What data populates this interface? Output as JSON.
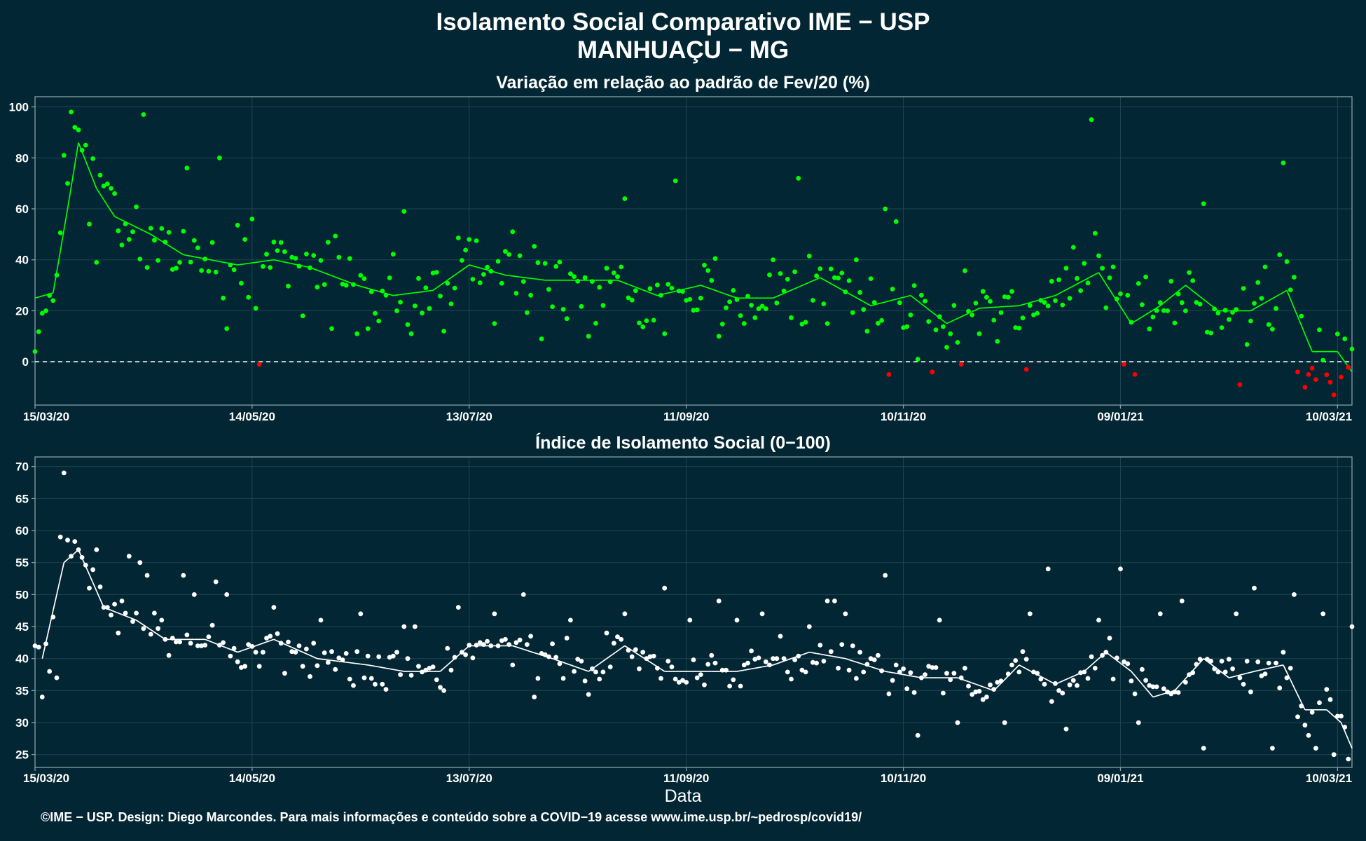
{
  "title_line1": "Isolamento Social Comparativo IME − USP",
  "title_line2": "MANHUAÇU − MG",
  "footer": "©IME − USP. Design: Diego Marcondes. Para mais informações e conteúdo sobre a COVID−19 acesse www.ime.usp.br/~pedrosp/covid19/",
  "xlabel": "Data",
  "colors": {
    "background": "#022633",
    "positive": "#00ff00",
    "negative": "#ff0000",
    "index": "#ffffff",
    "grid": "#1d4652",
    "axis": "#8aa0a8"
  },
  "chart_data": [
    {
      "type": "scatter",
      "subtitle": "Variação em relação ao padrão de Fev/20 (%)",
      "x_range": [
        "15/03/20",
        "10/03/21"
      ],
      "x_ticks": [
        "15/03/20",
        "14/05/20",
        "13/07/20",
        "11/09/20",
        "10/11/20",
        "09/01/21",
        "10/03/21"
      ],
      "ylim": [
        -17,
        104
      ],
      "y_ticks": [
        0,
        20,
        40,
        60,
        80,
        100
      ],
      "reference_line": 0,
      "overlay": "moving average line, green when positive, red when negative",
      "anchor_points_date_value": [
        [
          "15/03/20",
          4
        ],
        [
          "17/03/20",
          19
        ],
        [
          "18/03/20",
          20
        ],
        [
          "19/03/20",
          26
        ],
        [
          "20/03/20",
          24
        ],
        [
          "21/03/20",
          34
        ],
        [
          "23/03/20",
          81
        ],
        [
          "24/03/20",
          70
        ],
        [
          "25/03/20",
          98
        ],
        [
          "26/03/20",
          92
        ],
        [
          "27/03/20",
          91
        ],
        [
          "28/03/20",
          83
        ],
        [
          "29/03/20",
          85
        ],
        [
          "30/03/20",
          54
        ],
        [
          "01/04/20",
          39
        ],
        [
          "03/04/20",
          69
        ],
        [
          "05/04/20",
          68
        ],
        [
          "06/04/20",
          66
        ],
        [
          "10/04/20",
          48
        ],
        [
          "14/04/20",
          97
        ],
        [
          "15/04/20",
          37
        ],
        [
          "20/04/20",
          47
        ],
        [
          "26/04/20",
          76
        ],
        [
          "05/05/20",
          80
        ],
        [
          "06/05/20",
          25
        ],
        [
          "07/05/20",
          13
        ],
        [
          "12/05/20",
          48
        ],
        [
          "14/05/20",
          56
        ],
        [
          "15/05/20",
          21
        ],
        [
          "16/05/20",
          -1
        ],
        [
          "20/05/20",
          47
        ],
        [
          "28/05/20",
          18
        ],
        [
          "05/06/20",
          13
        ],
        [
          "12/06/20",
          11
        ],
        [
          "18/06/20",
          16
        ],
        [
          "25/06/20",
          59
        ],
        [
          "27/06/20",
          11
        ],
        [
          "06/07/20",
          12
        ],
        [
          "13/07/20",
          48
        ],
        [
          "20/07/20",
          15
        ],
        [
          "25/07/20",
          51
        ],
        [
          "02/08/20",
          9
        ],
        [
          "15/08/20",
          10
        ],
        [
          "25/08/20",
          64
        ],
        [
          "05/09/20",
          11
        ],
        [
          "08/09/20",
          71
        ],
        [
          "20/09/20",
          10
        ],
        [
          "27/09/20",
          15
        ],
        [
          "05/10/20",
          40
        ],
        [
          "12/10/20",
          72
        ],
        [
          "20/10/20",
          15
        ],
        [
          "28/10/20",
          40
        ],
        [
          "05/11/20",
          60
        ],
        [
          "06/11/20",
          -5
        ],
        [
          "08/11/20",
          55
        ],
        [
          "14/11/20",
          1
        ],
        [
          "18/11/20",
          -4
        ],
        [
          "26/11/20",
          -1
        ],
        [
          "06/12/20",
          8
        ],
        [
          "14/12/20",
          -3
        ],
        [
          "01/01/21",
          95
        ],
        [
          "10/01/21",
          -1
        ],
        [
          "13/01/21",
          -5
        ],
        [
          "01/02/21",
          62
        ],
        [
          "11/02/21",
          -9
        ],
        [
          "23/02/21",
          78
        ],
        [
          "27/02/21",
          -4
        ],
        [
          "01/03/21",
          -10
        ],
        [
          "04/03/21",
          -7
        ],
        [
          "08/03/21",
          -8
        ],
        [
          "09/03/21",
          -13
        ],
        [
          "11/03/21",
          -6
        ],
        [
          "12/03/21",
          9
        ],
        [
          "14/03/21",
          5
        ]
      ],
      "moving_average_date_value": [
        [
          "15/03/20",
          25
        ],
        [
          "20/03/20",
          27
        ],
        [
          "24/03/20",
          60
        ],
        [
          "27/03/20",
          86
        ],
        [
          "01/04/20",
          68
        ],
        [
          "06/04/20",
          57
        ],
        [
          "16/04/20",
          50
        ],
        [
          "25/04/20",
          42
        ],
        [
          "10/05/20",
          38
        ],
        [
          "20/05/20",
          40
        ],
        [
          "30/05/20",
          37
        ],
        [
          "12/06/20",
          30
        ],
        [
          "22/06/20",
          26
        ],
        [
          "03/07/20",
          28
        ],
        [
          "13/07/20",
          38
        ],
        [
          "23/07/20",
          34
        ],
        [
          "03/08/20",
          32
        ],
        [
          "15/08/20",
          32
        ],
        [
          "23/08/20",
          32
        ],
        [
          "03/09/20",
          26
        ],
        [
          "15/09/20",
          30
        ],
        [
          "25/09/20",
          25
        ],
        [
          "05/10/20",
          25
        ],
        [
          "18/10/20",
          33
        ],
        [
          "01/11/20",
          22
        ],
        [
          "12/11/20",
          26
        ],
        [
          "22/11/20",
          15
        ],
        [
          "01/12/20",
          21
        ],
        [
          "12/12/20",
          22
        ],
        [
          "22/12/20",
          26
        ],
        [
          "03/01/21",
          35
        ],
        [
          "12/01/21",
          15
        ],
        [
          "20/01/21",
          22
        ],
        [
          "27/01/21",
          30
        ],
        [
          "05/02/21",
          20
        ],
        [
          "14/02/21",
          20
        ],
        [
          "24/02/21",
          28
        ],
        [
          "03/03/21",
          4
        ],
        [
          "10/03/21",
          4
        ],
        [
          "14/03/21",
          -4
        ]
      ]
    },
    {
      "type": "scatter",
      "subtitle": "Índice de Isolamento Social (0−100)",
      "x_range": [
        "15/03/20",
        "10/03/21"
      ],
      "x_ticks": [
        "15/03/20",
        "14/05/20",
        "13/07/20",
        "11/09/20",
        "10/11/20",
        "09/01/21",
        "10/03/21"
      ],
      "ylim": [
        23,
        71.5
      ],
      "y_ticks": [
        25,
        30,
        35,
        40,
        45,
        50,
        55,
        60,
        65,
        70
      ],
      "overlay": "moving average line",
      "anchor_points_date_value": [
        [
          "15/03/20",
          42
        ],
        [
          "17/03/20",
          34
        ],
        [
          "19/03/20",
          38
        ],
        [
          "21/03/20",
          37
        ],
        [
          "22/03/20",
          59
        ],
        [
          "23/03/20",
          69
        ],
        [
          "25/03/20",
          56
        ],
        [
          "27/03/20",
          57
        ],
        [
          "30/03/20",
          51
        ],
        [
          "01/04/20",
          57
        ],
        [
          "03/04/20",
          48
        ],
        [
          "10/04/20",
          56
        ],
        [
          "13/04/20",
          55
        ],
        [
          "15/04/20",
          53
        ],
        [
          "20/04/20",
          43
        ],
        [
          "25/04/20",
          53
        ],
        [
          "28/04/20",
          50
        ],
        [
          "04/05/20",
          52
        ],
        [
          "07/05/20",
          50
        ],
        [
          "15/05/20",
          41
        ],
        [
          "20/05/20",
          48
        ],
        [
          "02/06/20",
          46
        ],
        [
          "13/06/20",
          47
        ],
        [
          "17/06/20",
          36
        ],
        [
          "25/06/20",
          45
        ],
        [
          "28/06/20",
          45
        ],
        [
          "06/07/20",
          35
        ],
        [
          "10/07/20",
          48
        ],
        [
          "20/07/20",
          47
        ],
        [
          "28/07/20",
          50
        ],
        [
          "31/07/20",
          34
        ],
        [
          "10/08/20",
          46
        ],
        [
          "20/08/20",
          44
        ],
        [
          "25/08/20",
          47
        ],
        [
          "31/08/20",
          40
        ],
        [
          "05/09/20",
          51
        ],
        [
          "12/09/20",
          46
        ],
        [
          "20/09/20",
          49
        ],
        [
          "25/09/20",
          46
        ],
        [
          "02/10/20",
          47
        ],
        [
          "15/10/20",
          45
        ],
        [
          "20/10/20",
          49
        ],
        [
          "22/10/20",
          49
        ],
        [
          "25/10/20",
          47
        ],
        [
          "05/11/20",
          53
        ],
        [
          "14/11/20",
          28
        ],
        [
          "20/11/20",
          46
        ],
        [
          "25/11/20",
          30
        ],
        [
          "08/12/20",
          30
        ],
        [
          "15/12/20",
          47
        ],
        [
          "20/12/20",
          54
        ],
        [
          "25/12/20",
          29
        ],
        [
          "03/01/21",
          46
        ],
        [
          "09/01/21",
          54
        ],
        [
          "14/01/21",
          30
        ],
        [
          "20/01/21",
          47
        ],
        [
          "26/01/21",
          49
        ],
        [
          "01/02/21",
          26
        ],
        [
          "10/02/21",
          47
        ],
        [
          "15/02/21",
          51
        ],
        [
          "20/02/21",
          26
        ],
        [
          "26/02/21",
          50
        ],
        [
          "02/03/21",
          28
        ],
        [
          "04/03/21",
          26
        ],
        [
          "06/03/21",
          47
        ],
        [
          "09/03/21",
          25
        ],
        [
          "11/03/21",
          31
        ],
        [
          "14/03/21",
          45
        ]
      ],
      "moving_average_date_value": [
        [
          "17/03/20",
          40
        ],
        [
          "23/03/20",
          55
        ],
        [
          "27/03/20",
          57
        ],
        [
          "03/04/20",
          48
        ],
        [
          "12/04/20",
          46
        ],
        [
          "20/04/20",
          43
        ],
        [
          "01/05/20",
          43
        ],
        [
          "10/05/20",
          41
        ],
        [
          "20/05/20",
          43
        ],
        [
          "01/06/20",
          40
        ],
        [
          "15/06/20",
          39
        ],
        [
          "25/06/20",
          38
        ],
        [
          "05/07/20",
          38
        ],
        [
          "13/07/20",
          42
        ],
        [
          "25/07/20",
          42
        ],
        [
          "05/08/20",
          40
        ],
        [
          "15/08/20",
          38
        ],
        [
          "25/08/20",
          42
        ],
        [
          "05/09/20",
          38
        ],
        [
          "15/09/20",
          38
        ],
        [
          "25/09/20",
          38
        ],
        [
          "05/10/20",
          39
        ],
        [
          "15/10/20",
          41
        ],
        [
          "25/10/20",
          40
        ],
        [
          "05/11/20",
          38
        ],
        [
          "15/11/20",
          37
        ],
        [
          "25/11/20",
          37
        ],
        [
          "05/12/20",
          35
        ],
        [
          "12/12/20",
          39
        ],
        [
          "22/12/20",
          36
        ],
        [
          "30/12/20",
          38
        ],
        [
          "05/01/21",
          41
        ],
        [
          "12/01/21",
          38
        ],
        [
          "18/01/21",
          34
        ],
        [
          "24/01/21",
          35
        ],
        [
          "01/02/21",
          40
        ],
        [
          "08/02/21",
          37
        ],
        [
          "15/02/21",
          38
        ],
        [
          "23/02/21",
          39
        ],
        [
          "01/03/21",
          32
        ],
        [
          "07/03/21",
          32
        ],
        [
          "11/03/21",
          30
        ],
        [
          "14/03/21",
          26
        ]
      ]
    }
  ]
}
